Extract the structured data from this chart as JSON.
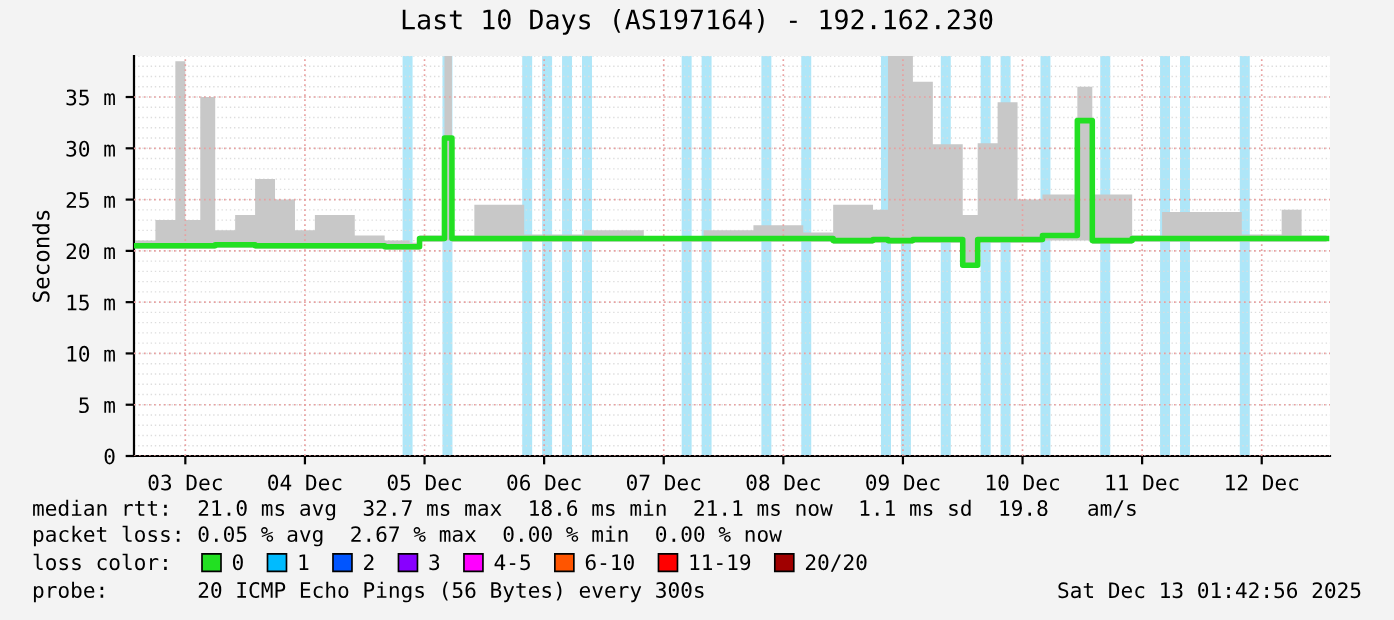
{
  "chart_data": {
    "type": "step",
    "title": "Last 10 Days (AS197164) - 192.162.230",
    "ylabel": "Seconds",
    "x": [
      "2025-12-03T02:00",
      "2025-12-03T06:00",
      "2025-12-03T10:00",
      "2025-12-03T12:00",
      "2025-12-03T15:00",
      "2025-12-03T18:00",
      "2025-12-03T22:00",
      "2025-12-04T02:00",
      "2025-12-04T06:00",
      "2025-12-04T10:00",
      "2025-12-04T14:00",
      "2025-12-04T18:00",
      "2025-12-04T22:00",
      "2025-12-05T04:00",
      "2025-12-05T09:00",
      "2025-12-05T11:00",
      "2025-12-05T16:00",
      "2025-12-05T17:30",
      "2025-12-05T22:00",
      "2025-12-06T08:00",
      "2025-12-06T20:00",
      "2025-12-07T08:00",
      "2025-12-07T20:00",
      "2025-12-08T06:00",
      "2025-12-08T16:00",
      "2025-12-08T22:00",
      "2025-12-09T06:00",
      "2025-12-09T09:00",
      "2025-12-09T12:00",
      "2025-12-09T14:00",
      "2025-12-09T18:00",
      "2025-12-10T00:00",
      "2025-12-10T03:00",
      "2025-12-10T07:00",
      "2025-12-10T11:00",
      "2025-12-10T16:00",
      "2025-12-10T23:00",
      "2025-12-11T02:00",
      "2025-12-11T10:00",
      "2025-12-11T16:00",
      "2025-12-12T00:00",
      "2025-12-12T08:00",
      "2025-12-12T16:00",
      "2025-12-12T20:00",
      "2025-12-13T01:00"
    ],
    "series": [
      {
        "name": "0",
        "color": "#22e022",
        "values": [
          20.5,
          20.5,
          20.5,
          20.5,
          20.5,
          20.6,
          20.6,
          20.5,
          20.5,
          20.5,
          20.5,
          20.5,
          20.5,
          20.4,
          20.4,
          21.2,
          31.0,
          21.2,
          21.2,
          21.2,
          21.2,
          21.2,
          21.2,
          21.2,
          21.2,
          21.0,
          21.1,
          21.0,
          21.0,
          21.1,
          21.1,
          18.6,
          21.1,
          21.1,
          21.1,
          21.5,
          32.7,
          21.0,
          21.2,
          21.2,
          21.2,
          21.2,
          21.2,
          21.2,
          21.2
        ],
        "lower": [
          20.2,
          20.2,
          20.2,
          20.2,
          20.2,
          20.3,
          20.3,
          20.2,
          20.2,
          20.2,
          20.2,
          20.2,
          20.2,
          20.1,
          20.1,
          20.9,
          21.0,
          20.9,
          20.9,
          20.9,
          20.9,
          20.9,
          20.9,
          20.9,
          20.9,
          20.7,
          20.8,
          20.7,
          20.7,
          20.8,
          20.8,
          18.6,
          20.8,
          20.8,
          20.8,
          21.0,
          21.0,
          20.7,
          20.9,
          20.9,
          20.9,
          20.9,
          20.9,
          20.9,
          20.9
        ],
        "upper": [
          21.0,
          23.0,
          38.5,
          23.0,
          35.0,
          22.0,
          23.5,
          27.0,
          25.0,
          22.0,
          23.5,
          23.5,
          21.5,
          21.0,
          20.8,
          21.5,
          39.0,
          21.5,
          24.5,
          21.6,
          22.0,
          21.4,
          22.0,
          22.5,
          21.8,
          24.5,
          24.0,
          39.0,
          39.0,
          36.5,
          30.4,
          23.5,
          30.5,
          34.5,
          25.0,
          25.5,
          36.0,
          25.5,
          21.5,
          23.8,
          23.8,
          21.6,
          24.0,
          21.5,
          21.4
        ]
      },
      {
        "name": "1",
        "color": "#00bbff",
        "values": [
          null,
          null,
          null,
          null,
          null,
          null,
          null,
          null,
          null,
          null,
          null,
          null,
          null,
          null,
          null,
          null,
          null,
          null,
          null,
          null,
          null,
          null,
          null,
          null,
          null,
          null,
          null,
          null,
          null,
          null,
          null,
          null,
          null,
          null,
          null,
          null,
          null,
          null,
          null,
          null,
          null,
          null,
          null,
          null,
          null
        ]
      },
      {
        "name": "2",
        "color": "#0055ff",
        "values": [
          null,
          null,
          null,
          null,
          null,
          null,
          null,
          null,
          null,
          null,
          null,
          null,
          null,
          null,
          null,
          null,
          null,
          null,
          null,
          null,
          null,
          null,
          null,
          null,
          null,
          null,
          null,
          null,
          null,
          null,
          null,
          null,
          null,
          null,
          null,
          null,
          null,
          null,
          null,
          null,
          null,
          null,
          null,
          null,
          null
        ]
      },
      {
        "name": "3",
        "color": "#8800ff",
        "values": [
          null,
          null,
          null,
          null,
          null,
          null,
          null,
          null,
          null,
          null,
          null,
          null,
          null,
          null,
          null,
          null,
          null,
          null,
          null,
          null,
          null,
          null,
          null,
          null,
          null,
          null,
          null,
          null,
          null,
          null,
          null,
          null,
          null,
          null,
          null,
          null,
          null,
          null,
          null,
          null,
          null,
          null,
          null,
          null,
          null
        ]
      },
      {
        "name": "4-5",
        "color": "#ff00ff",
        "values": [
          null,
          null,
          null,
          null,
          null,
          null,
          null,
          null,
          null,
          null,
          null,
          null,
          null,
          null,
          null,
          null,
          null,
          null,
          null,
          null,
          null,
          null,
          null,
          null,
          null,
          null,
          null,
          null,
          null,
          null,
          null,
          null,
          null,
          null,
          null,
          null,
          null,
          null,
          null,
          null,
          null,
          null,
          null,
          null,
          null
        ]
      },
      {
        "name": "6-10",
        "color": "#ff5500",
        "values": [
          null,
          null,
          null,
          null,
          null,
          null,
          null,
          null,
          null,
          null,
          null,
          null,
          null,
          null,
          null,
          null,
          null,
          null,
          null,
          null,
          null,
          null,
          null,
          null,
          null,
          null,
          null,
          null,
          null,
          null,
          null,
          null,
          null,
          null,
          null,
          null,
          null,
          null,
          null,
          null,
          null,
          null,
          null,
          null,
          null
        ]
      },
      {
        "name": "11-19",
        "color": "#ff0000",
        "values": [
          null,
          null,
          null,
          null,
          null,
          null,
          null,
          null,
          null,
          null,
          null,
          null,
          null,
          null,
          null,
          null,
          null,
          null,
          null,
          null,
          null,
          null,
          null,
          null,
          null,
          null,
          null,
          null,
          null,
          null,
          null,
          null,
          null,
          null,
          null,
          null,
          null,
          null,
          null,
          null,
          null,
          null,
          null,
          null,
          null
        ]
      },
      {
        "name": "20/20",
        "color": "#a00000",
        "values": [
          null,
          null,
          null,
          null,
          null,
          null,
          null,
          null,
          null,
          null,
          null,
          null,
          null,
          null,
          null,
          null,
          null,
          null,
          null,
          null,
          null,
          null,
          null,
          null,
          null,
          null,
          null,
          null,
          null,
          null,
          null,
          null,
          null,
          null,
          null,
          null,
          null,
          null,
          null,
          null,
          null,
          null,
          null,
          null,
          null
        ]
      }
    ],
    "bands": [
      {
        "axis": "x",
        "from": "2025-12-05T07:36",
        "to": "2025-12-05T09:36",
        "color": "#aee6f8"
      },
      {
        "axis": "x",
        "from": "2025-12-05T15:36",
        "to": "2025-12-05T17:36",
        "color": "#aee6f8"
      },
      {
        "axis": "x",
        "from": "2025-12-06T07:36",
        "to": "2025-12-06T09:36",
        "color": "#aee6f8"
      },
      {
        "axis": "x",
        "from": "2025-12-06T11:36",
        "to": "2025-12-06T13:36",
        "color": "#aee6f8"
      },
      {
        "axis": "x",
        "from": "2025-12-06T15:36",
        "to": "2025-12-06T17:36",
        "color": "#aee6f8"
      },
      {
        "axis": "x",
        "from": "2025-12-06T19:36",
        "to": "2025-12-06T21:36",
        "color": "#aee6f8"
      },
      {
        "axis": "x",
        "from": "2025-12-07T15:36",
        "to": "2025-12-07T17:36",
        "color": "#aee6f8"
      },
      {
        "axis": "x",
        "from": "2025-12-07T19:36",
        "to": "2025-12-07T21:36",
        "color": "#aee6f8"
      },
      {
        "axis": "x",
        "from": "2025-12-08T07:36",
        "to": "2025-12-08T09:36",
        "color": "#aee6f8"
      },
      {
        "axis": "x",
        "from": "2025-12-08T15:36",
        "to": "2025-12-08T17:36",
        "color": "#aee6f8"
      },
      {
        "axis": "x",
        "from": "2025-12-09T07:36",
        "to": "2025-12-09T09:36",
        "color": "#aee6f8"
      },
      {
        "axis": "x",
        "from": "2025-12-09T11:36",
        "to": "2025-12-09T13:36",
        "color": "#aee6f8"
      },
      {
        "axis": "x",
        "from": "2025-12-09T19:36",
        "to": "2025-12-09T21:36",
        "color": "#aee6f8"
      },
      {
        "axis": "x",
        "from": "2025-12-10T03:36",
        "to": "2025-12-10T05:36",
        "color": "#aee6f8"
      },
      {
        "axis": "x",
        "from": "2025-12-10T07:36",
        "to": "2025-12-10T09:36",
        "color": "#aee6f8"
      },
      {
        "axis": "x",
        "from": "2025-12-10T15:36",
        "to": "2025-12-10T17:36",
        "color": "#aee6f8"
      },
      {
        "axis": "x",
        "from": "2025-12-11T03:36",
        "to": "2025-12-11T05:36",
        "color": "#aee6f8"
      },
      {
        "axis": "x",
        "from": "2025-12-11T15:36",
        "to": "2025-12-11T17:36",
        "color": "#aee6f8"
      },
      {
        "axis": "x",
        "from": "2025-12-11T19:36",
        "to": "2025-12-11T21:36",
        "color": "#aee6f8"
      },
      {
        "axis": "x",
        "from": "2025-12-12T07:36",
        "to": "2025-12-12T09:36",
        "color": "#aee6f8"
      }
    ],
    "xlim": [
      "2025-12-03T01:42",
      "2025-12-13T01:42"
    ],
    "xticks": [
      {
        "value": "2025-12-03T12:00",
        "label": "03 Dec"
      },
      {
        "value": "2025-12-04T12:00",
        "label": "04 Dec"
      },
      {
        "value": "2025-12-05T12:00",
        "label": "05 Dec"
      },
      {
        "value": "2025-12-06T12:00",
        "label": "06 Dec"
      },
      {
        "value": "2025-12-07T12:00",
        "label": "07 Dec"
      },
      {
        "value": "2025-12-08T12:00",
        "label": "08 Dec"
      },
      {
        "value": "2025-12-09T12:00",
        "label": "09 Dec"
      },
      {
        "value": "2025-12-10T12:00",
        "label": "10 Dec"
      },
      {
        "value": "2025-12-11T12:00",
        "label": "11 Dec"
      },
      {
        "value": "2025-12-12T12:00",
        "label": "12 Dec"
      }
    ],
    "ylim": [
      0,
      39
    ],
    "yticks": [
      0,
      {
        "value": 5,
        "label": "5 m"
      },
      {
        "value": 10,
        "label": "10 m"
      },
      {
        "value": 15,
        "label": "15 m"
      },
      {
        "value": 20,
        "label": "20 m"
      },
      {
        "value": 25,
        "label": "25 m"
      },
      {
        "value": 30,
        "label": "30 m"
      },
      {
        "value": 35,
        "label": "35 m"
      }
    ],
    "grid": true,
    "legend": "bottom",
    "annotations": [
      "median rtt:  21.0 ms avg  32.7 ms max  18.6 ms min  21.1 ms now  1.1 ms sd  19.8   am/s",
      "packet loss: 0.05 % avg  2.67 % max  0.00 % min  0.00 % now",
      "loss color:",
      "probe:       20 ICMP Echo Pings (56 Bytes) every 300s",
      "Sat Dec 13 01:42:56 2025"
    ]
  }
}
